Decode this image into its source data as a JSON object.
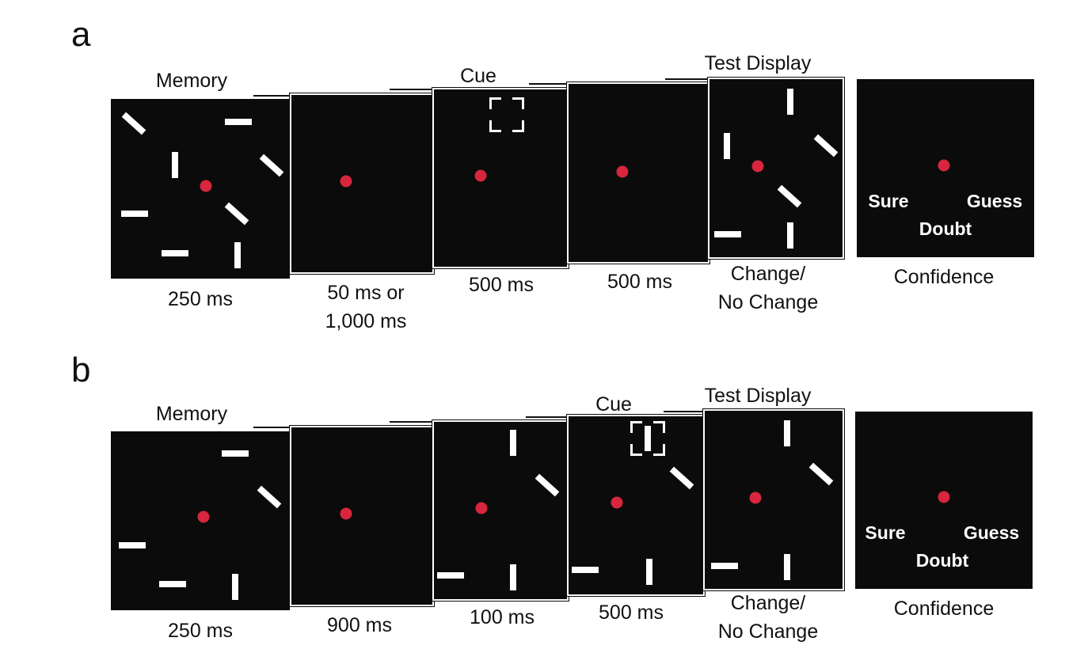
{
  "panels": [
    {
      "letter": "a",
      "top_labels": {
        "memory": "Memory",
        "cue": "Cue",
        "test": "Test Display"
      },
      "captions": {
        "memory": "250 ms",
        "delay1_line1": "50 ms or",
        "delay1_line2": "1,000 ms",
        "cue": "500 ms",
        "delay2": "500 ms",
        "test_line1": "Change/",
        "test_line2": "No Change",
        "confidence": "Confidence"
      },
      "confidence_options": {
        "sure": "Sure",
        "guess": "Guess",
        "doubt": "Doubt"
      }
    },
    {
      "letter": "b",
      "top_labels": {
        "memory": "Memory",
        "cue": "Cue",
        "test": "Test Display"
      },
      "captions": {
        "memory": "250 ms",
        "delay1": "900 ms",
        "probe": "100 ms",
        "cue": "500 ms",
        "test_line1": "Change/",
        "test_line2": "No Change",
        "confidence": "Confidence"
      },
      "confidence_options": {
        "sure": "Sure",
        "guess": "Guess",
        "doubt": "Doubt"
      }
    }
  ],
  "colors": {
    "screen": "#0b0b0b",
    "fixation": "#d7263d",
    "stimulus": "#ffffff"
  }
}
